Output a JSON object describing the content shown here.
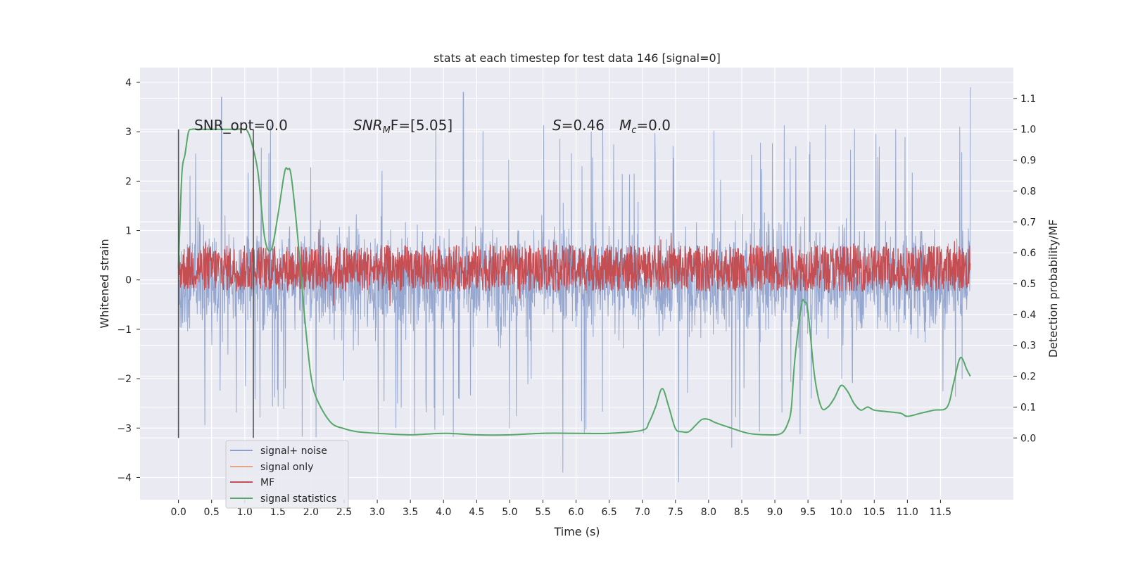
{
  "chart_data": {
    "type": "line",
    "title": "stats at each timestep for test data 146 [signal=0]",
    "xlabel": "Time (s)",
    "ylabel": "Whitened strain",
    "y2label": "Detection probability/MF",
    "xlim": [
      -0.58,
      12.6
    ],
    "ylim": [
      -4.45,
      4.3
    ],
    "y2lim": [
      -0.2,
      1.2
    ],
    "xticks": [
      "0.0",
      "0.5",
      "1.0",
      "1.5",
      "2.0",
      "2.5",
      "3.0",
      "3.5",
      "4.0",
      "4.5",
      "5.0",
      "5.5",
      "6.0",
      "6.5",
      "7.0",
      "7.5",
      "8.0",
      "8.5",
      "9.0",
      "9.5",
      "10.0",
      "10.5",
      "11.0",
      "11.5"
    ],
    "yticks": [
      "4",
      "3",
      "2",
      "1",
      "0",
      "−1",
      "−2",
      "−3",
      "−4"
    ],
    "y2ticks": [
      "1.1",
      "1.0",
      "0.9",
      "0.8",
      "0.7",
      "0.6",
      "0.5",
      "0.4",
      "0.3",
      "0.2",
      "0.1",
      "0.0"
    ],
    "grid": true,
    "legend_position": "lower-left",
    "legend": [
      "signal+ noise",
      "signal only",
      "MF",
      "signal statistics"
    ],
    "annotations": {
      "snr_opt": "SNR_opt=0.0",
      "snr_mf_symbol": "SNR",
      "snr_mf_sub": "M",
      "snr_mf_rest": "F=[5.05]",
      "s_symbol": "S",
      "s_value": "=0.46",
      "mc_symbol": "M",
      "mc_sub": "c",
      "mc_value": "=0.0"
    },
    "markers": {
      "vertical_lines_x": [
        0.0,
        1.13
      ],
      "y_range": [
        -3.2,
        3.05
      ]
    },
    "noise": {
      "duration": 11.95,
      "bulk_amplitude": 1.6,
      "peaks": [
        [
          0.65,
          3.7
        ],
        [
          4.3,
          3.8
        ],
        [
          11.95,
          3.9
        ],
        [
          5.8,
          -3.9
        ],
        [
          7.55,
          -4.1
        ],
        [
          8.35,
          -3.4
        ]
      ]
    },
    "mf": {
      "baseline": 0.55,
      "amplitude": 0.15
    },
    "signal_statistics": {
      "x": [
        0.0,
        0.05,
        0.1,
        0.15,
        0.2,
        0.3,
        0.5,
        0.8,
        1.0,
        1.05,
        1.1,
        1.2,
        1.3,
        1.4,
        1.5,
        1.6,
        1.65,
        1.7,
        1.8,
        1.9,
        2.0,
        2.1,
        2.3,
        2.5,
        2.7,
        3.0,
        3.5,
        4.0,
        4.5,
        5.0,
        5.5,
        6.0,
        6.5,
        7.0,
        7.1,
        7.2,
        7.3,
        7.4,
        7.5,
        7.6,
        7.7,
        7.8,
        7.9,
        8.0,
        8.1,
        8.3,
        8.6,
        8.9,
        9.1,
        9.2,
        9.25,
        9.3,
        9.4,
        9.45,
        9.5,
        9.6,
        9.7,
        9.8,
        9.9,
        10.0,
        10.1,
        10.2,
        10.3,
        10.4,
        10.5,
        10.7,
        10.9,
        11.0,
        11.2,
        11.4,
        11.6,
        11.7,
        11.8,
        11.9,
        11.95
      ],
      "y": [
        0.55,
        0.85,
        0.92,
        0.99,
        1.0,
        1.0,
        1.0,
        1.0,
        1.0,
        0.99,
        0.96,
        0.86,
        0.65,
        0.61,
        0.72,
        0.86,
        0.87,
        0.85,
        0.65,
        0.4,
        0.2,
        0.12,
        0.05,
        0.03,
        0.02,
        0.015,
        0.01,
        0.015,
        0.01,
        0.01,
        0.015,
        0.015,
        0.015,
        0.025,
        0.05,
        0.1,
        0.16,
        0.1,
        0.03,
        0.02,
        0.02,
        0.04,
        0.06,
        0.06,
        0.05,
        0.035,
        0.015,
        0.01,
        0.015,
        0.05,
        0.1,
        0.25,
        0.43,
        0.44,
        0.41,
        0.2,
        0.1,
        0.1,
        0.13,
        0.17,
        0.15,
        0.11,
        0.09,
        0.1,
        0.09,
        0.085,
        0.08,
        0.07,
        0.08,
        0.09,
        0.1,
        0.18,
        0.26,
        0.22,
        0.2
      ]
    },
    "colors": {
      "noise": "#8da0cb",
      "signal_only": "#e8a487",
      "mf": "#c44e52",
      "stats": "#55a868",
      "grid_bg": "#eaeaf2",
      "markers": "#555555"
    }
  }
}
